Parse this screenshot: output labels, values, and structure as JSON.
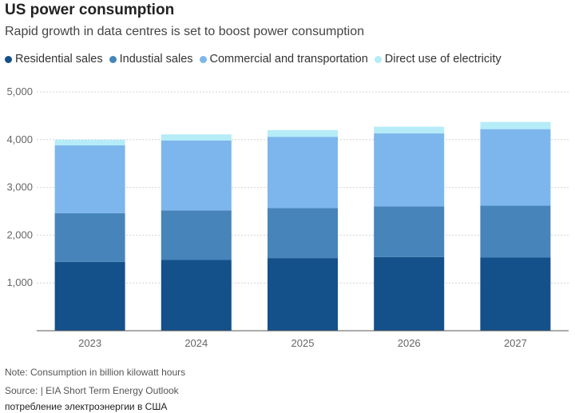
{
  "chart_data": {
    "type": "bar",
    "stacked": true,
    "title": "US power consumption",
    "subtitle": "Rapid growth in data centres is set to boost power consumption",
    "categories": [
      "2023",
      "2024",
      "2025",
      "2026",
      "2027"
    ],
    "series": [
      {
        "name": "Residential sales",
        "color": "#14508a",
        "values": [
          1440,
          1480,
          1520,
          1540,
          1530
        ]
      },
      {
        "name": "Industial sales",
        "color": "#4684ba",
        "values": [
          1020,
          1040,
          1050,
          1060,
          1090
        ]
      },
      {
        "name": "Commercial and transportation",
        "color": "#7db6ec",
        "values": [
          1420,
          1460,
          1490,
          1530,
          1600
        ]
      },
      {
        "name": "Direct use of electricity",
        "color": "#b5ecf8",
        "values": [
          120,
          130,
          140,
          140,
          150
        ]
      }
    ],
    "yticks": [
      "1,000",
      "2,000",
      "3,000",
      "4,000",
      "5,000"
    ],
    "ylim": [
      0,
      5000
    ],
    "grid": true,
    "legend_position": "top"
  },
  "footer": {
    "note": "Note: Consumption in billion kilowatt hours",
    "source": "Source: | EIA Short Term Energy Outlook",
    "caption": "потребление электроэнергии в США"
  }
}
